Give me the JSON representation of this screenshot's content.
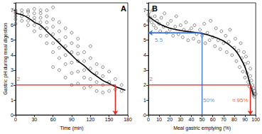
{
  "chart_data": [
    {
      "type": "scatter",
      "title": "A",
      "x_label": "Time (min)",
      "y_label": "Gastric pH during meal digestion",
      "xlim": [
        0,
        180
      ],
      "xticks": [
        0,
        30,
        60,
        90,
        120,
        150,
        180
      ],
      "ylim": [
        0,
        7.5
      ],
      "yticks": [
        0,
        1,
        2,
        3,
        4,
        5,
        6,
        7
      ],
      "grid": false,
      "series": [
        {
          "type": "scatter",
          "color": "#333333",
          "marker": "circle-open",
          "x": [
            0,
            0,
            0,
            0,
            0,
            0,
            10,
            10,
            10,
            10,
            20,
            20,
            20,
            20,
            20,
            30,
            30,
            30,
            30,
            30,
            30,
            40,
            40,
            40,
            40,
            40,
            40,
            50,
            50,
            50,
            50,
            50,
            50,
            60,
            60,
            60,
            60,
            60,
            60,
            60,
            70,
            70,
            70,
            70,
            70,
            70,
            80,
            80,
            80,
            80,
            80,
            80,
            90,
            90,
            90,
            90,
            90,
            90,
            100,
            100,
            100,
            100,
            100,
            100,
            110,
            110,
            110,
            110,
            110,
            120,
            120,
            120,
            120,
            120,
            130,
            130,
            130,
            130,
            140,
            140,
            140,
            140,
            150,
            150,
            150,
            160,
            160,
            170,
            170
          ],
          "values": [
            6.1,
            6.4,
            6.6,
            6.8,
            7.0,
            6.9,
            6.3,
            6.6,
            6.8,
            7.0,
            6.0,
            6.3,
            6.6,
            6.9,
            7.0,
            5.6,
            6.0,
            6.3,
            6.5,
            6.8,
            7.1,
            5.3,
            5.8,
            6.2,
            6.5,
            6.8,
            7.0,
            4.8,
            5.3,
            5.8,
            6.2,
            6.6,
            7.0,
            3.2,
            4.2,
            4.8,
            5.4,
            5.9,
            6.4,
            7.2,
            3.0,
            3.8,
            4.5,
            5.0,
            5.6,
            6.2,
            2.5,
            3.4,
            4.0,
            4.6,
            5.2,
            5.8,
            2.0,
            2.8,
            3.5,
            4.2,
            4.8,
            5.5,
            2.1,
            2.9,
            3.6,
            4.1,
            4.6,
            5.1,
            1.8,
            2.5,
            3.0,
            3.6,
            4.2,
            1.9,
            2.4,
            3.1,
            3.8,
            4.6,
            1.6,
            2.2,
            2.8,
            3.4,
            1.5,
            2.0,
            2.6,
            3.2,
            1.6,
            2.2,
            2.9,
            1.7,
            2.4,
            1.6,
            2.0
          ]
        },
        {
          "type": "line",
          "color": "#000000",
          "line_style": "solid",
          "x": [
            0,
            10,
            20,
            30,
            40,
            50,
            60,
            70,
            80,
            90,
            100,
            110,
            120,
            130,
            140,
            150,
            160,
            170,
            176
          ],
          "values": [
            6.8,
            6.7,
            6.5,
            6.2,
            6.0,
            5.6,
            5.2,
            4.8,
            4.4,
            4.0,
            3.6,
            3.3,
            2.9,
            2.6,
            2.3,
            2.1,
            1.9,
            1.75,
            1.65
          ]
        },
        {
          "type": "line",
          "color": "#e8251c",
          "marker": "arrow",
          "x": [
            0,
            160,
            160
          ],
          "values": [
            2,
            2,
            0
          ]
        }
      ],
      "annotations": [
        {
          "text": "2",
          "x": 2,
          "y": 2.4,
          "color": "#e8251c"
        }
      ]
    },
    {
      "type": "scatter",
      "title": "B",
      "x_label": "Meal gastric emptying (%)",
      "xlim": [
        0,
        100
      ],
      "xticks": [
        0,
        10,
        20,
        30,
        40,
        50,
        60,
        70,
        80,
        90,
        100
      ],
      "ylim": [
        0,
        7.5
      ],
      "yticks": [
        0,
        1,
        2,
        3,
        4,
        5,
        6,
        7
      ],
      "grid": false,
      "series": [
        {
          "type": "scatter",
          "color": "#333333",
          "marker": "circle-open",
          "x": [
            0,
            0,
            1,
            2,
            3,
            4,
            5,
            6,
            7,
            8,
            10,
            11,
            12,
            14,
            15,
            17,
            18,
            20,
            21,
            23,
            25,
            26,
            28,
            30,
            32,
            33,
            35,
            37,
            38,
            40,
            42,
            43,
            45,
            47,
            48,
            50,
            52,
            53,
            55,
            57,
            58,
            60,
            62,
            63,
            65,
            67,
            68,
            70,
            72,
            73,
            75,
            76,
            78,
            80,
            81,
            82,
            84,
            85,
            86,
            87,
            88,
            89,
            90,
            90,
            91,
            92,
            93,
            93,
            94,
            95,
            95,
            96,
            96,
            97,
            97,
            98,
            98,
            99,
            99,
            100
          ],
          "values": [
            6.3,
            6.7,
            6.9,
            6.5,
            6.2,
            7.0,
            6.0,
            6.6,
            5.8,
            6.3,
            6.1,
            5.6,
            6.5,
            5.9,
            6.8,
            5.5,
            6.1,
            5.7,
            6.3,
            5.3,
            5.9,
            6.6,
            5.4,
            6.0,
            5.2,
            5.7,
            6.2,
            5.0,
            5.6,
            5.8,
            5.1,
            6.0,
            5.4,
            4.9,
            5.7,
            5.3,
            6.1,
            4.8,
            5.5,
            5.0,
            6.3,
            5.2,
            4.6,
            5.8,
            5.0,
            4.4,
            5.6,
            4.8,
            5.3,
            4.2,
            4.9,
            5.7,
            4.0,
            4.5,
            5.1,
            3.6,
            4.3,
            3.2,
            4.8,
            3.8,
            2.9,
            4.2,
            3.4,
            2.5,
            3.9,
            2.8,
            2.2,
            3.5,
            1.9,
            2.6,
            3.1,
            1.7,
            2.3,
            1.5,
            2.0,
            1.3,
            1.8,
            1.2,
            1.6,
            1.4
          ]
        },
        {
          "type": "line",
          "color": "#000000",
          "line_style": "solid",
          "x": [
            0,
            10,
            20,
            30,
            40,
            50,
            60,
            70,
            80,
            85,
            90,
            95,
            98
          ],
          "values": [
            6.6,
            6.1,
            5.8,
            5.65,
            5.55,
            5.45,
            5.25,
            4.95,
            4.4,
            3.9,
            3.2,
            2.0,
            1.3
          ]
        },
        {
          "type": "line",
          "color": "#3a6fd0",
          "marker": "arrow",
          "x": [
            50,
            50,
            0
          ],
          "values": [
            0,
            5.5,
            5.5
          ]
        },
        {
          "type": "line",
          "color": "#e8251c",
          "marker": "arrow",
          "x": [
            0,
            95,
            95
          ],
          "values": [
            2,
            2,
            0
          ]
        }
      ],
      "annotations": [
        {
          "text": "2",
          "x": 1,
          "y": 2.4,
          "color": "#e8251c"
        },
        {
          "text": "5.5",
          "x": 6,
          "y": 5.0,
          "color": "#3a6fd0"
        },
        {
          "text": "50%",
          "x": 51,
          "y": 1.0,
          "color": "#3a6fd0"
        },
        {
          "text": "≈ 95%",
          "x": 78,
          "y": 1.0,
          "color": "#e8251c"
        }
      ]
    }
  ]
}
